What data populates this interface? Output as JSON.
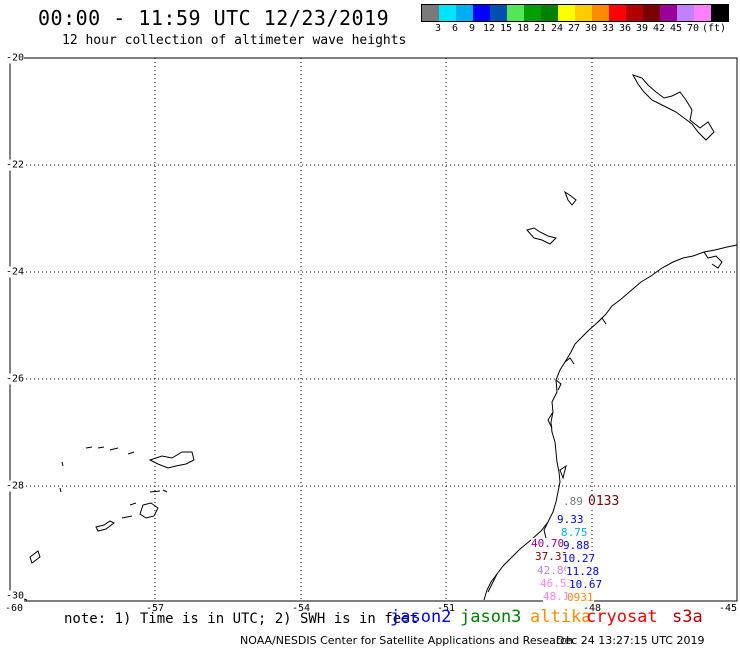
{
  "header": {
    "title": "00:00 - 11:59 UTC 12/23/2019",
    "subtitle": "12 hour collection of altimeter wave heights"
  },
  "colorbar": {
    "colors": [
      "#7a7a7a",
      "#00e5ff",
      "#00aeef",
      "#0000ff",
      "#0050b0",
      "#55e655",
      "#00a000",
      "#008000",
      "#ffff00",
      "#ffcc00",
      "#ff8c00",
      "#ff0000",
      "#b00000",
      "#7a0000",
      "#9b009b",
      "#c080ff",
      "#ff80ff",
      "#000000"
    ],
    "labels": [
      "3",
      "6",
      "9",
      "12",
      "15",
      "18",
      "21",
      "24",
      "27",
      "30",
      "33",
      "36",
      "39",
      "42",
      "45",
      "70",
      "(ft)"
    ]
  },
  "map": {
    "lat_labels": [
      "-20",
      "-22",
      "-24",
      "-26",
      "-28",
      "-30"
    ],
    "lon_labels": [
      "-60",
      "-57",
      "-54",
      "-51",
      "-48",
      "-45"
    ]
  },
  "observations": [
    {
      "text": ".89",
      "color": "#7a7a7a"
    },
    {
      "text": "0133",
      "color": "#7a0000"
    },
    {
      "text": "9.33",
      "color": "#0000ff"
    },
    {
      "text": "8.75",
      "color": "#00aeef"
    },
    {
      "text": "9.88",
      "color": "#0000ff"
    },
    {
      "text": "40.70",
      "color": "#9b009b"
    },
    {
      "text": "37.31",
      "color": "#7a0000"
    },
    {
      "text": "10.27",
      "color": "#0000ff"
    },
    {
      "text": "42.89",
      "color": "#c080ff"
    },
    {
      "text": "11.28",
      "color": "#0000ff"
    },
    {
      "text": "46.53",
      "color": "#ff80ff"
    },
    {
      "text": "10.67",
      "color": "#0000ff"
    },
    {
      "text": "48.19",
      "color": "#ff80ff"
    },
    {
      "text": "0931",
      "color": "#ff8c00"
    }
  ],
  "footer": {
    "note": "note: 1) Time is in UTC; 2) SWH is in feet",
    "satellites": [
      {
        "name": "jason2",
        "color": "#0000ff"
      },
      {
        "name": "jason3",
        "color": "#008000"
      },
      {
        "name": "altika",
        "color": "#ff8c00"
      },
      {
        "name": "cryosat",
        "color": "#ff0000"
      },
      {
        "name": "s3a",
        "color": "#b00000"
      }
    ],
    "credit": "NOAA/NESDIS Center for Satellite Applications and Research",
    "timestamp": "Dec 24 13:27:15 UTC 2019"
  }
}
